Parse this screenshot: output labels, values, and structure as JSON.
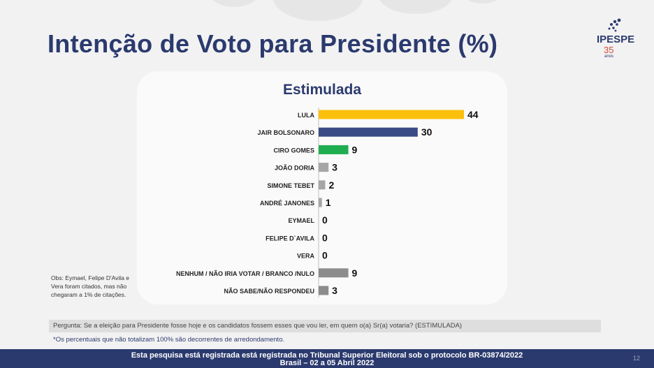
{
  "title": "Intenção de Voto para Presidente (%)",
  "logo": {
    "brand": "IPESPE",
    "number": "35",
    "suffix": "anos"
  },
  "chart_data": {
    "type": "bar",
    "orientation": "horizontal",
    "title": "Estimulada",
    "categories": [
      "LULA",
      "JAIR BOLSONARO",
      "CIRO GOMES",
      "JOÃO DORIA",
      "SIMONE TEBET",
      "ANDRÉ JANONES",
      "EYMAEL",
      "FELIPE D`AVILA",
      "VERA",
      "NENHUM / NÃO IRIA VOTAR / BRANCO /NULO",
      "NÃO SABE/NÃO RESPONDEU"
    ],
    "values": [
      44,
      30,
      9,
      3,
      2,
      1,
      0,
      0,
      0,
      9,
      3
    ],
    "colors": [
      "#fcc00c",
      "#3b4b84",
      "#1fae4f",
      "#a6a6a6",
      "#a6a6a6",
      "#a6a6a6",
      "#a6a6a6",
      "#a6a6a6",
      "#a6a6a6",
      "#8c8c8c",
      "#8c8c8c"
    ],
    "xlim": [
      0,
      44
    ],
    "grid": false,
    "legend": "none"
  },
  "obs": "Obs: Eymael, Felipe D'Avila e Vera foram citados, mas não chegaram a 1% de citações.",
  "question": "Pergunta:  Se a eleição para Presidente fosse hoje e os candidatos fossem esses que vou ler, em quem o(a) Sr(a) votaria? (ESTIMULADA)",
  "note": "*Os percentuais que não totalizam 100% são decorrentes de arredondamento.",
  "footer": {
    "line1": "Esta pesquisa está registrada está registrada no Tribunal Superior Eleitoral sob o protocolo BR-03874/2022",
    "line2": "Brasil – 02 a 05 Abril 2022",
    "page": "12"
  }
}
